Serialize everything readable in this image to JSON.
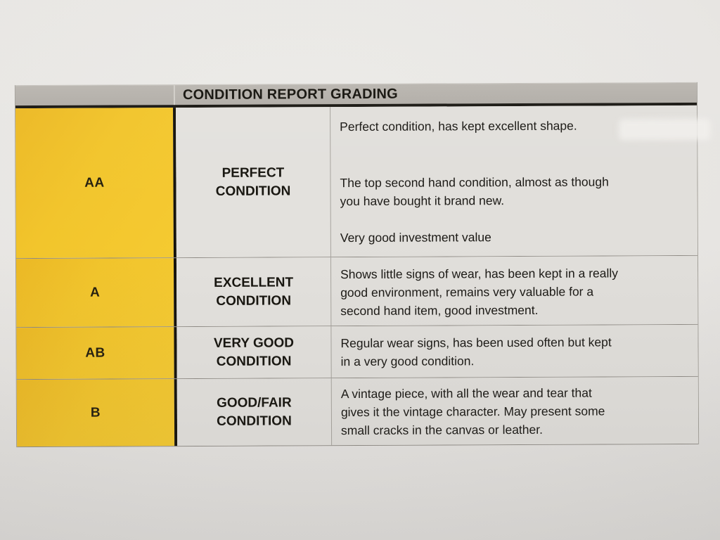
{
  "document": {
    "title": "CONDITION REPORT GRADING",
    "colors": {
      "grade_column_yellow": "#f2c52c",
      "header_bar_gray": "#b4b0aa",
      "cell_background": "#e2e0dc",
      "paper_background": "#e7e5e2",
      "text": "#1b1915"
    },
    "rows": [
      {
        "grade": "AA",
        "condition": [
          "PERFECT",
          "CONDITION"
        ],
        "description": [
          [
            "Perfect condition, has kept excellent shape."
          ],
          [
            "The top second hand condition, almost as though",
            "you have bought it brand new."
          ],
          [
            "Very good investment value"
          ]
        ]
      },
      {
        "grade": "A",
        "condition": [
          "EXCELLENT",
          "CONDITION"
        ],
        "description": [
          [
            "Shows little signs of wear, has been kept in a really",
            "good environment, remains very valuable for a",
            "second hand item, good investment."
          ]
        ]
      },
      {
        "grade": "AB",
        "condition": [
          "VERY GOOD",
          "CONDITION"
        ],
        "description": [
          [
            "Regular wear signs, has been used often but kept",
            "in a very good condition."
          ]
        ]
      },
      {
        "grade": "B",
        "condition": [
          "GOOD/FAIR",
          "CONDITION"
        ],
        "description": [
          [
            "A vintage piece, with all the wear and tear that",
            "gives it the vintage character. May present some",
            "small cracks in the canvas or leather."
          ]
        ]
      }
    ]
  }
}
